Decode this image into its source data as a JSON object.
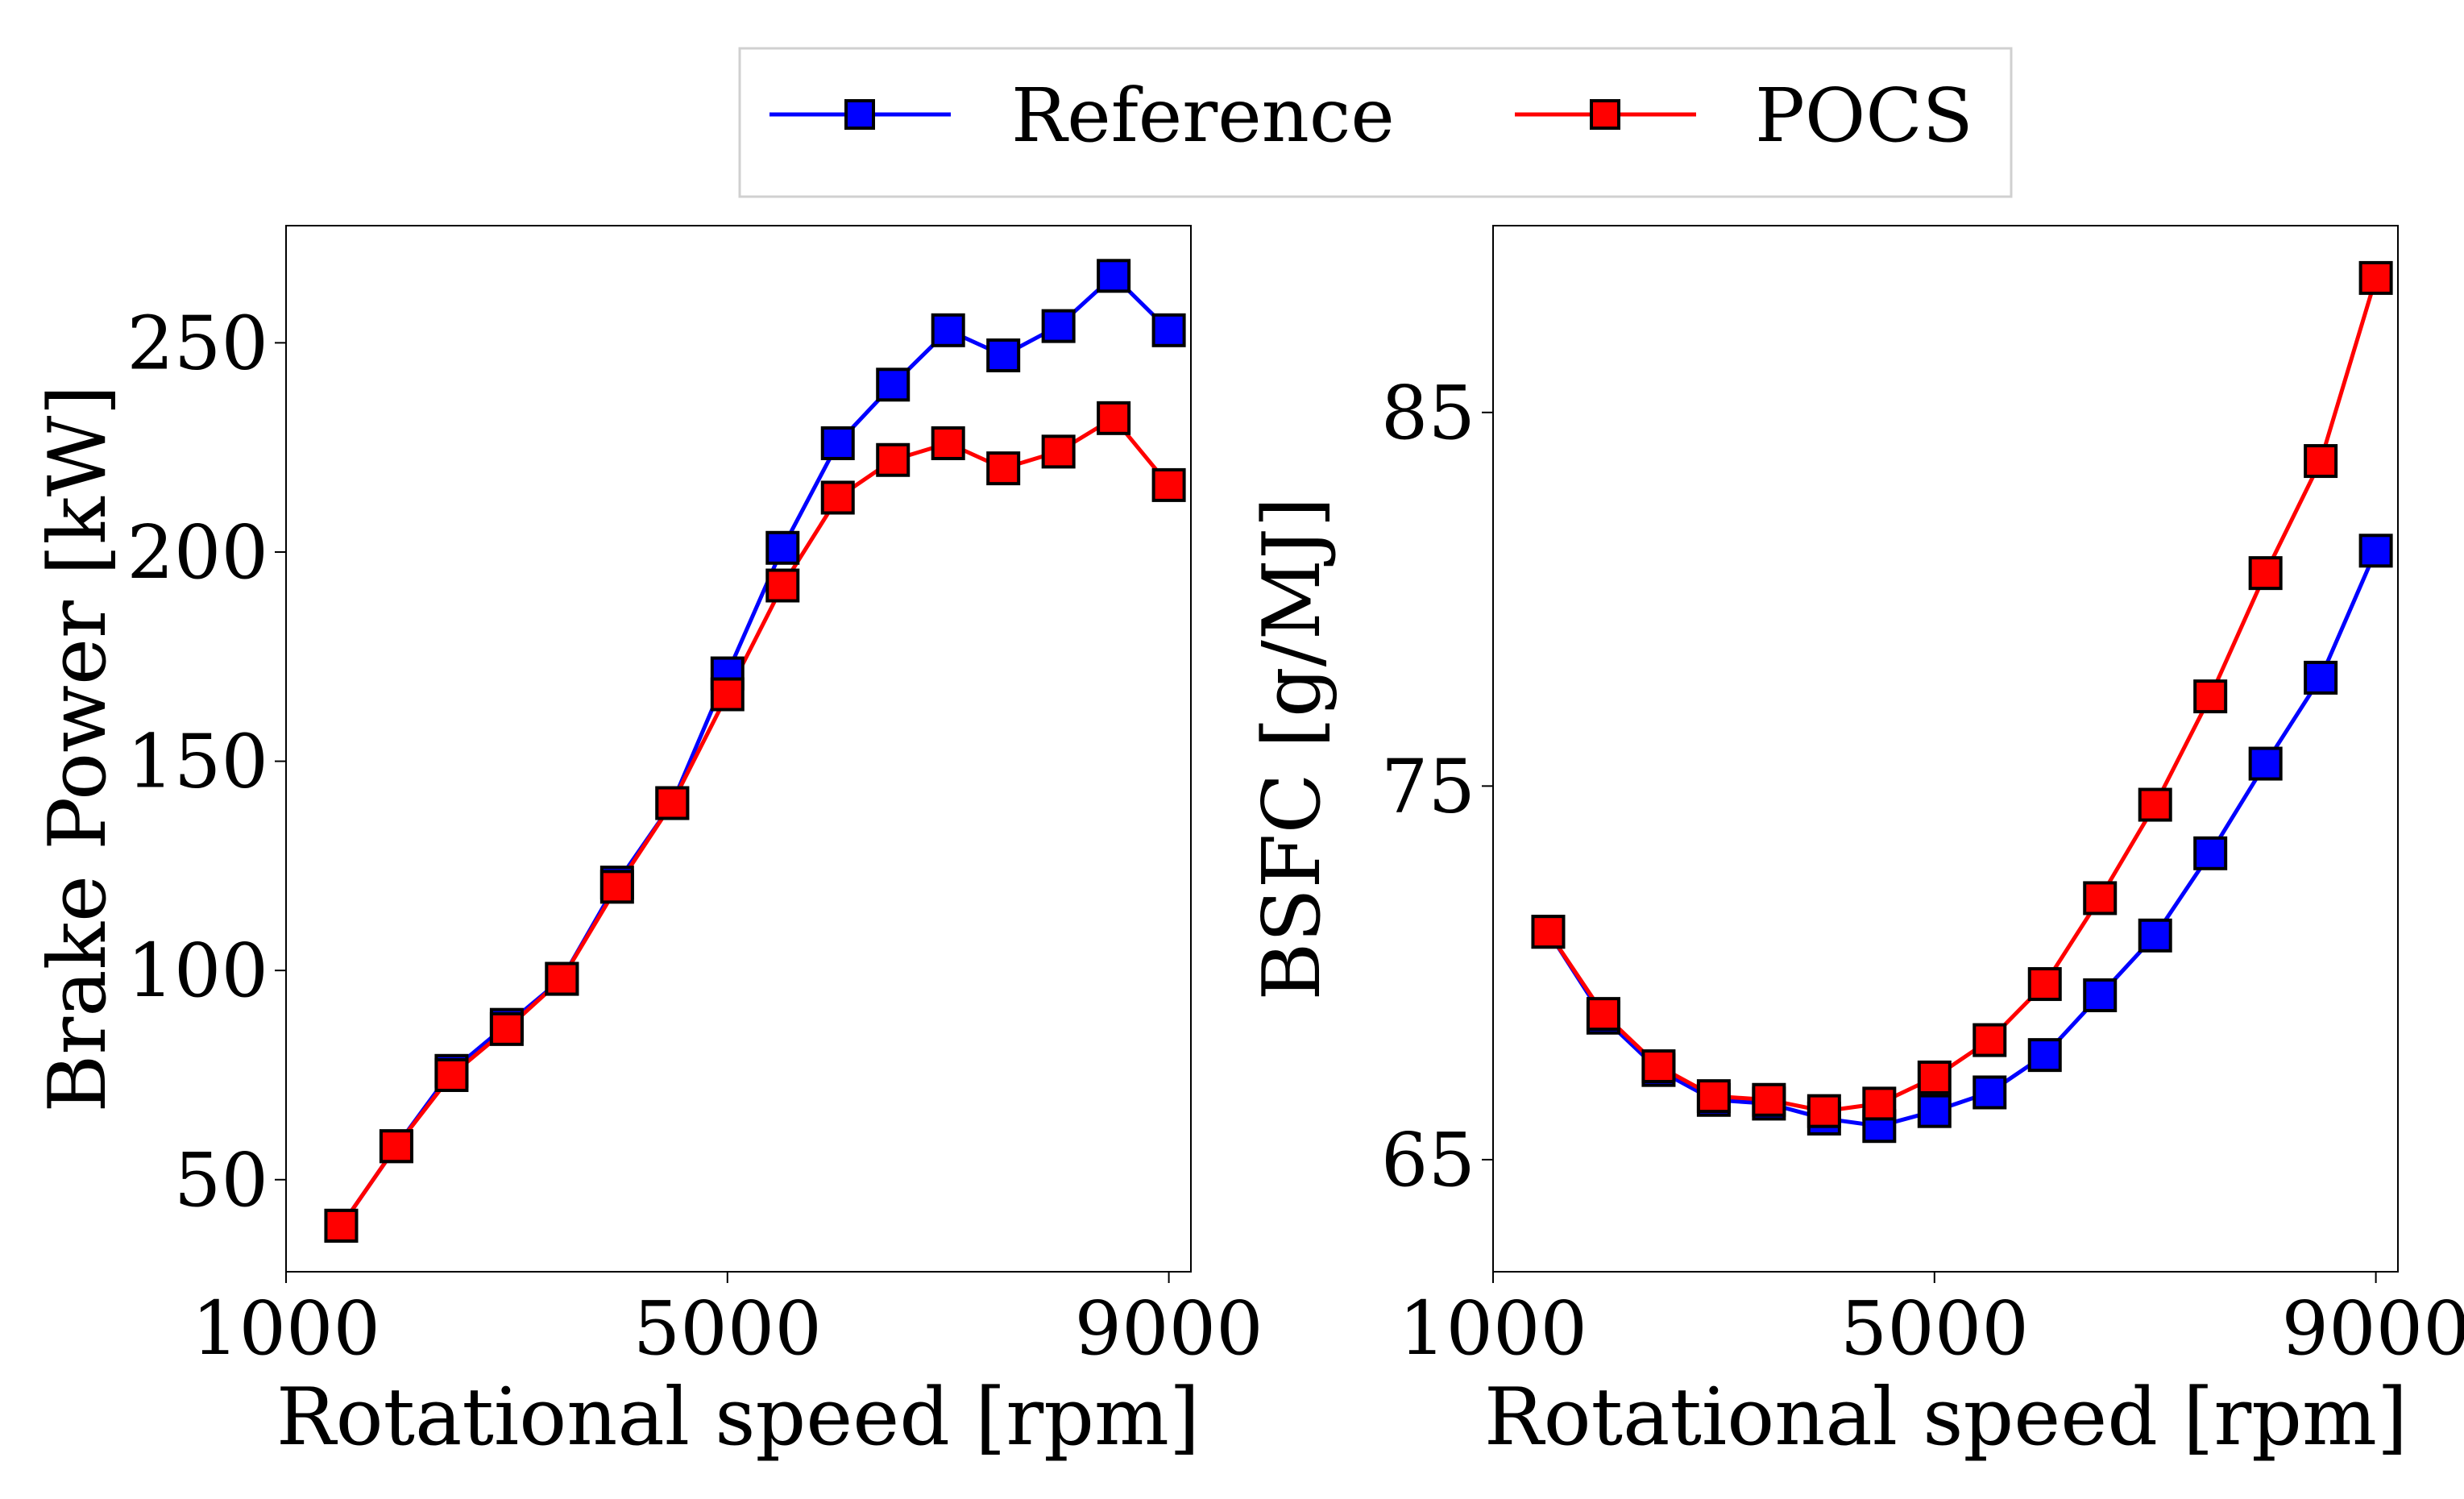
{
  "legend": {
    "entries": [
      {
        "name": "Reference",
        "color": "#0000ff"
      },
      {
        "name": "POCS",
        "color": "#ff0000"
      }
    ]
  },
  "chart_data": [
    {
      "type": "line",
      "title": "",
      "xlabel": "Rotational speed [rpm]",
      "ylabel": "Brake Power [kW]",
      "xlim": [
        1000,
        9200
      ],
      "ylim": [
        28,
        278
      ],
      "xticks": [
        1000,
        5000,
        9000
      ],
      "yticks": [
        50,
        100,
        150,
        200,
        250
      ],
      "x": [
        1500,
        2000,
        2500,
        3000,
        3500,
        4000,
        4500,
        5000,
        5500,
        6000,
        6500,
        7000,
        7500,
        8000,
        8500,
        9000
      ],
      "series": [
        {
          "name": "Reference",
          "color": "#0000ff",
          "values": [
            39,
            58,
            76,
            87,
            98,
            121,
            140,
            171,
            201,
            226,
            240,
            253,
            247,
            254,
            266,
            253
          ]
        },
        {
          "name": "POCS",
          "color": "#ff0000",
          "values": [
            39,
            58,
            75,
            86,
            98,
            120,
            140,
            166,
            192,
            213,
            222,
            226,
            220,
            224,
            232,
            216
          ]
        }
      ]
    },
    {
      "type": "line",
      "title": "",
      "xlabel": "Rotational speed [rpm]",
      "ylabel": "BSFC [g/MJ]",
      "xlim": [
        1000,
        9200
      ],
      "ylim": [
        62.0,
        90.0
      ],
      "xticks": [
        1000,
        5000,
        9000
      ],
      "yticks": [
        65,
        75,
        85
      ],
      "x": [
        1500,
        2000,
        2500,
        3000,
        3500,
        4000,
        4500,
        5000,
        5500,
        6000,
        6500,
        7000,
        7500,
        8000,
        8500,
        9000
      ],
      "series": [
        {
          "name": "Reference",
          "color": "#0000ff",
          "values": [
            71.1,
            68.8,
            67.4,
            66.6,
            66.5,
            66.1,
            65.9,
            66.3,
            66.8,
            67.8,
            69.4,
            71.0,
            73.2,
            75.6,
            77.9,
            81.3
          ]
        },
        {
          "name": "POCS",
          "color": "#ff0000",
          "values": [
            71.1,
            68.9,
            67.5,
            66.7,
            66.6,
            66.3,
            66.5,
            67.2,
            68.2,
            69.7,
            72.0,
            74.5,
            77.4,
            80.7,
            83.7,
            88.6
          ]
        }
      ]
    }
  ]
}
